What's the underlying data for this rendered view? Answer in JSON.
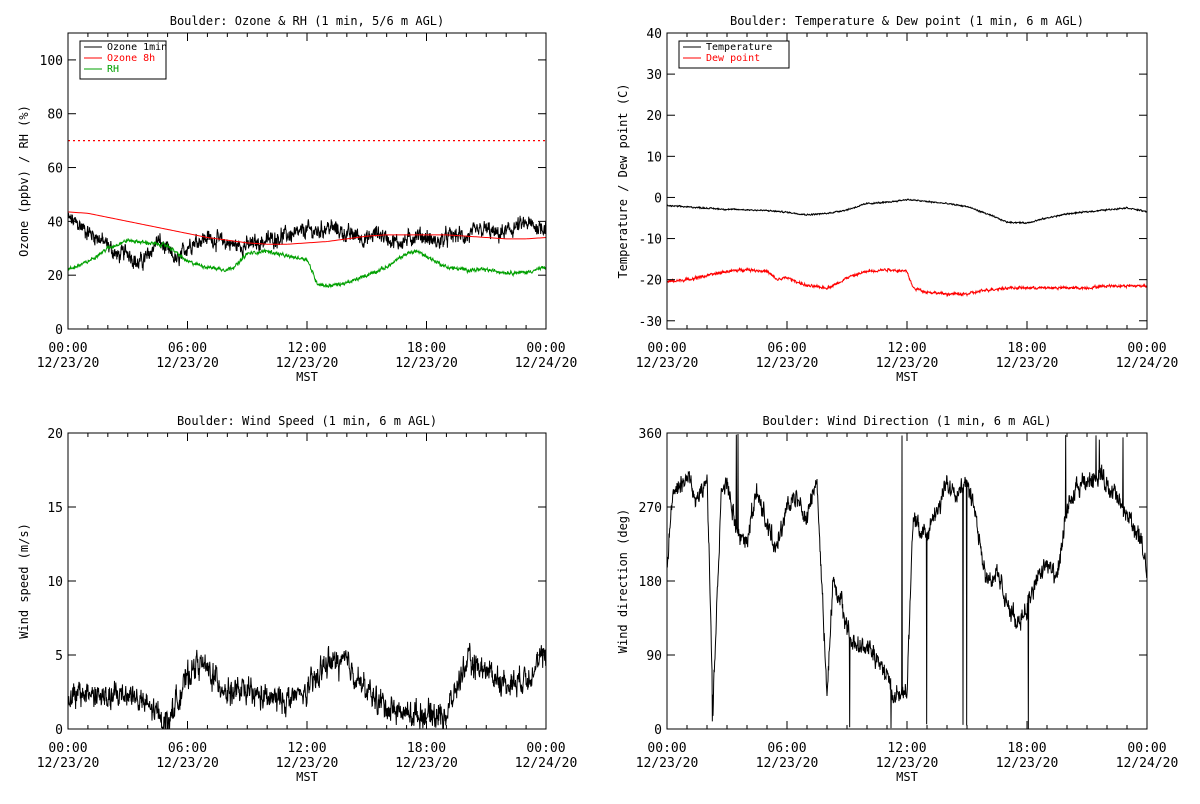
{
  "chart_data": [
    {
      "id": "ozone_rh",
      "type": "line",
      "title": "Boulder: Ozone & RH (1 min, 5/6 m AGL)",
      "xlabel": "MST",
      "ylabel": "Ozone (ppbv) / RH (%)",
      "xlim": [
        0,
        24
      ],
      "ylim": [
        0,
        110
      ],
      "yticks": [
        0,
        20,
        40,
        60,
        80,
        100
      ],
      "xticks": [
        {
          "hour": 0,
          "time": "00:00",
          "date": "12/23/20"
        },
        {
          "hour": 6,
          "time": "06:00",
          "date": "12/23/20"
        },
        {
          "hour": 12,
          "time": "12:00",
          "date": "12/23/20"
        },
        {
          "hour": 18,
          "time": "18:00",
          "date": "12/23/20"
        },
        {
          "hour": 24,
          "time": "00:00",
          "date": "12/24/20"
        }
      ],
      "legend_position": "top-left",
      "reference_line": {
        "y": 70,
        "color": "#ff0000",
        "style": "dotted"
      },
      "series": [
        {
          "name": "Ozone 1min",
          "color": "#000000",
          "noise": 4.5,
          "x": [
            0,
            0.5,
            1,
            1.5,
            2,
            2.5,
            3,
            3.5,
            4,
            4.5,
            5,
            5.5,
            6,
            6.5,
            7,
            7.5,
            8,
            8.5,
            9,
            9.5,
            10,
            10.5,
            11,
            11.5,
            12,
            12.5,
            13,
            13.5,
            14,
            14.5,
            15,
            15.5,
            16,
            16.5,
            17,
            17.5,
            18,
            18.5,
            19,
            19.5,
            20,
            20.5,
            21,
            21.5,
            22,
            22.5,
            23,
            23.5,
            24
          ],
          "y": [
            41,
            39,
            36,
            34,
            31,
            27,
            29,
            24,
            27,
            33,
            29,
            25,
            31,
            33,
            34,
            33,
            32,
            31,
            31,
            32,
            33,
            34,
            35,
            35,
            37,
            36,
            38,
            37,
            35,
            35,
            33,
            36,
            34,
            32,
            33,
            35,
            34,
            32,
            34,
            35,
            34,
            36,
            37,
            35,
            36,
            38,
            39,
            38,
            38
          ]
        },
        {
          "name": "Ozone 8h",
          "color": "#ff0000",
          "noise": 0,
          "x": [
            0,
            1,
            2,
            3,
            4,
            5,
            6,
            7,
            8,
            9,
            10,
            11,
            12,
            13,
            14,
            15,
            16,
            17,
            18,
            19,
            20,
            21,
            22,
            23,
            24
          ],
          "y": [
            43.5,
            43,
            41.5,
            40,
            38.5,
            37,
            35.5,
            34,
            33,
            32,
            31.5,
            31.5,
            32,
            32.5,
            33.5,
            34.5,
            35,
            35,
            35,
            35,
            34.5,
            34,
            33.5,
            33.5,
            34
          ]
        },
        {
          "name": "RH",
          "color": "#00a000",
          "noise": 1.0,
          "x": [
            0,
            1,
            2,
            3,
            4,
            5,
            6,
            7,
            8,
            8.5,
            9,
            10,
            11,
            12,
            12.5,
            13,
            14,
            15,
            16,
            17,
            17.5,
            18,
            18.5,
            19,
            20,
            21,
            22,
            23,
            24
          ],
          "y": [
            22,
            25,
            30,
            33,
            32,
            31,
            25,
            23,
            22,
            24,
            28,
            29,
            27,
            26,
            17,
            16,
            17,
            20,
            23,
            28,
            29,
            27,
            25,
            23,
            22,
            22,
            21,
            21,
            23
          ]
        }
      ]
    },
    {
      "id": "temp_dew",
      "type": "line",
      "title": "Boulder: Temperature & Dew point (1 min, 6 m AGL)",
      "xlabel": "MST",
      "ylabel": "Temperature / Dew point (C)",
      "xlim": [
        0,
        24
      ],
      "ylim": [
        -32,
        40
      ],
      "yticks": [
        -30,
        -20,
        -10,
        0,
        10,
        20,
        30,
        40
      ],
      "xticks": [
        {
          "hour": 0,
          "time": "00:00",
          "date": "12/23/20"
        },
        {
          "hour": 6,
          "time": "06:00",
          "date": "12/23/20"
        },
        {
          "hour": 12,
          "time": "12:00",
          "date": "12/23/20"
        },
        {
          "hour": 18,
          "time": "18:00",
          "date": "12/23/20"
        },
        {
          "hour": 24,
          "time": "00:00",
          "date": "12/24/20"
        }
      ],
      "legend_position": "top-left",
      "series": [
        {
          "name": "Temperature",
          "color": "#000000",
          "noise": 0.25,
          "x": [
            0,
            1,
            2,
            3,
            4,
            5,
            6,
            7,
            8,
            9,
            10,
            11,
            12,
            13,
            14,
            15,
            16,
            17,
            18,
            19,
            20,
            21,
            22,
            23,
            24
          ],
          "y": [
            -2,
            -2.3,
            -2.6,
            -2.9,
            -3,
            -3.2,
            -3.6,
            -4.2,
            -3.9,
            -3,
            -1.5,
            -1.2,
            -0.5,
            -1,
            -1.5,
            -2.2,
            -4,
            -6,
            -6.2,
            -5,
            -4,
            -3.5,
            -3,
            -2.5,
            -3.5
          ]
        },
        {
          "name": "Dew point",
          "color": "#ff0000",
          "noise": 0.5,
          "x": [
            0,
            1,
            2,
            3,
            4,
            5,
            5.5,
            6,
            7,
            8,
            8.5,
            9,
            10,
            11,
            12,
            12.3,
            13,
            14,
            15,
            16,
            17,
            18,
            19,
            20,
            21,
            22,
            23,
            24
          ],
          "y": [
            -20.5,
            -20,
            -19,
            -18,
            -17.5,
            -18,
            -20,
            -19.5,
            -21.5,
            -22,
            -21,
            -19.5,
            -18,
            -17.5,
            -18,
            -22,
            -23,
            -23.5,
            -23.5,
            -22.5,
            -22,
            -22,
            -22,
            -22,
            -22,
            -21.5,
            -21.5,
            -21.5
          ]
        }
      ]
    },
    {
      "id": "wind_speed",
      "type": "line",
      "title": "Boulder: Wind Speed (1 min, 6 m AGL)",
      "xlabel": "MST",
      "ylabel": "Wind speed (m/s)",
      "xlim": [
        0,
        24
      ],
      "ylim": [
        0,
        20
      ],
      "yticks": [
        0,
        5,
        10,
        15,
        20
      ],
      "xticks": [
        {
          "hour": 0,
          "time": "00:00",
          "date": "12/23/20"
        },
        {
          "hour": 6,
          "time": "06:00",
          "date": "12/23/20"
        },
        {
          "hour": 12,
          "time": "12:00",
          "date": "12/23/20"
        },
        {
          "hour": 18,
          "time": "18:00",
          "date": "12/23/20"
        },
        {
          "hour": 24,
          "time": "00:00",
          "date": "12/24/20"
        }
      ],
      "series": [
        {
          "name": "",
          "color": "#000000",
          "noise": 1.3,
          "clip_min": 0,
          "x": [
            0,
            1,
            2,
            3,
            4,
            5,
            6,
            6.5,
            7,
            8,
            9,
            10,
            11,
            12,
            13,
            14,
            15,
            16,
            17,
            18,
            19,
            20,
            21,
            22,
            23,
            24
          ],
          "y": [
            2,
            2.5,
            2,
            2.5,
            1.5,
            0.5,
            3.5,
            4.5,
            4,
            2.5,
            2.5,
            2,
            2,
            2.5,
            4.5,
            4.5,
            2.5,
            1.5,
            1,
            1,
            1,
            4.5,
            4,
            3,
            3.5,
            5
          ]
        }
      ]
    },
    {
      "id": "wind_dir",
      "type": "line",
      "title": "Boulder: Wind Direction (1 min, 6 m AGL)",
      "xlabel": "MST",
      "ylabel": "Wind direction (deg)",
      "xlim": [
        0,
        24
      ],
      "ylim": [
        0,
        360
      ],
      "yticks": [
        0,
        90,
        180,
        270,
        360
      ],
      "xticks": [
        {
          "hour": 0,
          "time": "00:00",
          "date": "12/23/20"
        },
        {
          "hour": 6,
          "time": "06:00",
          "date": "12/23/20"
        },
        {
          "hour": 12,
          "time": "12:00",
          "date": "12/23/20"
        },
        {
          "hour": 18,
          "time": "18:00",
          "date": "12/23/20"
        },
        {
          "hour": 24,
          "time": "00:00",
          "date": "12/24/20"
        }
      ],
      "series": [
        {
          "name": "",
          "color": "#000000",
          "noise": 18,
          "clip_min": 0,
          "clip_max": 360,
          "wrap_spikes": true,
          "x": [
            0,
            0.3,
            0.8,
            1,
            1.5,
            2,
            2.3,
            2.7,
            3,
            3.5,
            4,
            4.5,
            5,
            5.5,
            6,
            6.5,
            7,
            7.5,
            8,
            8.3,
            8.7,
            9,
            9.5,
            10,
            10.5,
            11,
            11.5,
            12,
            12.3,
            13,
            13.5,
            14,
            14.5,
            15,
            15.5,
            16,
            16.5,
            17,
            17.5,
            18,
            18.5,
            19,
            19.5,
            20,
            20.5,
            21,
            21.5,
            22,
            22.5,
            23,
            23.5,
            24
          ],
          "y": [
            200,
            290,
            300,
            310,
            280,
            300,
            30,
            280,
            300,
            240,
            230,
            290,
            250,
            220,
            270,
            280,
            260,
            300,
            40,
            180,
            160,
            120,
            100,
            100,
            90,
            60,
            40,
            50,
            250,
            240,
            260,
            300,
            290,
            300,
            250,
            180,
            190,
            150,
            130,
            150,
            180,
            200,
            180,
            270,
            290,
            300,
            310,
            300,
            280,
            260,
            240,
            200
          ]
        }
      ]
    }
  ]
}
